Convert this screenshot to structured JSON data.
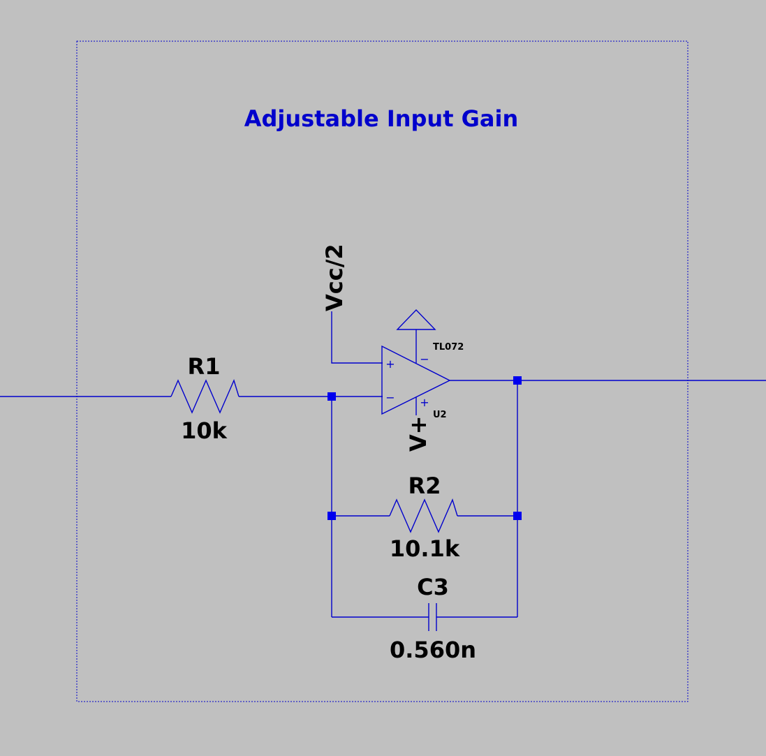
{
  "schematic": {
    "title": "Adjustable Input Gain",
    "colors": {
      "background": "#c0c0c0",
      "wire": "#0000cc",
      "title": "#0000cc",
      "label": "#000000",
      "junction": "#0000ee"
    },
    "net_labels": {
      "vcc_half": "Vcc/2",
      "vplus": "V+"
    },
    "components": {
      "r1": {
        "name": "R1",
        "value": "10k"
      },
      "r2": {
        "name": "R2",
        "value": "10.1k"
      },
      "c3": {
        "name": "C3",
        "value": "0.560n"
      },
      "u2": {
        "model": "TL072",
        "name": "U2"
      }
    },
    "opamp_pins": {
      "in_plus": "+",
      "in_minus": "−",
      "supply_neg": "−",
      "supply_pos": "+"
    }
  }
}
